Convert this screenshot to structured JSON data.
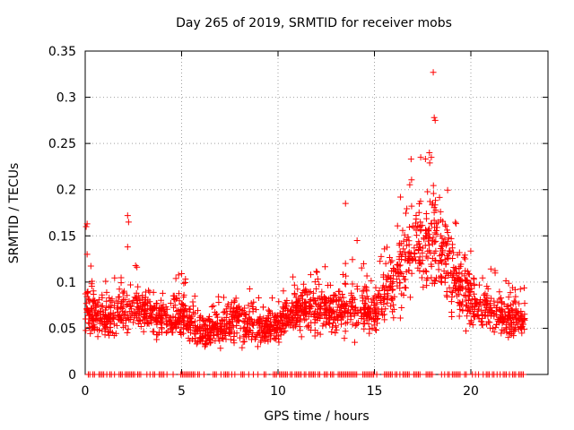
{
  "chart_data": {
    "type": "scatter",
    "title": "Day 265 of 2019, SRMTID for receiver mobs",
    "xlabel": "GPS time / hours",
    "ylabel": "SRMTID / TECUs",
    "xlim": [
      0,
      24
    ],
    "ylim": [
      0,
      0.35
    ],
    "xticks": [
      0,
      5,
      10,
      15,
      20
    ],
    "yticks": [
      0,
      0.05,
      0.1,
      0.15,
      0.2,
      0.25,
      0.3,
      0.35
    ],
    "grid": true,
    "marker": "+",
    "color": "#ff0000",
    "envelope": [
      [
        0,
        0.075
      ],
      [
        1,
        0.06
      ],
      [
        2,
        0.07
      ],
      [
        3,
        0.07
      ],
      [
        4,
        0.06
      ],
      [
        5,
        0.065
      ],
      [
        6,
        0.045
      ],
      [
        7,
        0.05
      ],
      [
        8,
        0.06
      ],
      [
        9,
        0.05
      ],
      [
        10,
        0.055
      ],
      [
        11,
        0.07
      ],
      [
        12,
        0.07
      ],
      [
        13,
        0.07
      ],
      [
        14,
        0.075
      ],
      [
        15,
        0.07
      ],
      [
        16,
        0.1
      ],
      [
        17,
        0.14
      ],
      [
        18,
        0.15
      ],
      [
        19,
        0.11
      ],
      [
        20,
        0.08
      ],
      [
        21,
        0.07
      ],
      [
        22,
        0.06
      ],
      [
        22.8,
        0.06
      ]
    ],
    "outliers": [
      [
        0.05,
        0.16
      ],
      [
        0.1,
        0.163
      ],
      [
        0.1,
        0.13
      ],
      [
        2.2,
        0.172
      ],
      [
        2.25,
        0.165
      ],
      [
        2.2,
        0.138
      ],
      [
        13.5,
        0.185
      ],
      [
        14.1,
        0.145
      ],
      [
        18.05,
        0.327
      ],
      [
        18.1,
        0.278
      ],
      [
        18.15,
        0.275
      ],
      [
        17.95,
        0.235
      ],
      [
        17.85,
        0.24
      ],
      [
        17.4,
        0.235
      ],
      [
        16.9,
        0.233
      ]
    ],
    "zero_points": {
      "from": 0,
      "to": 22.8,
      "value": 0
    }
  }
}
